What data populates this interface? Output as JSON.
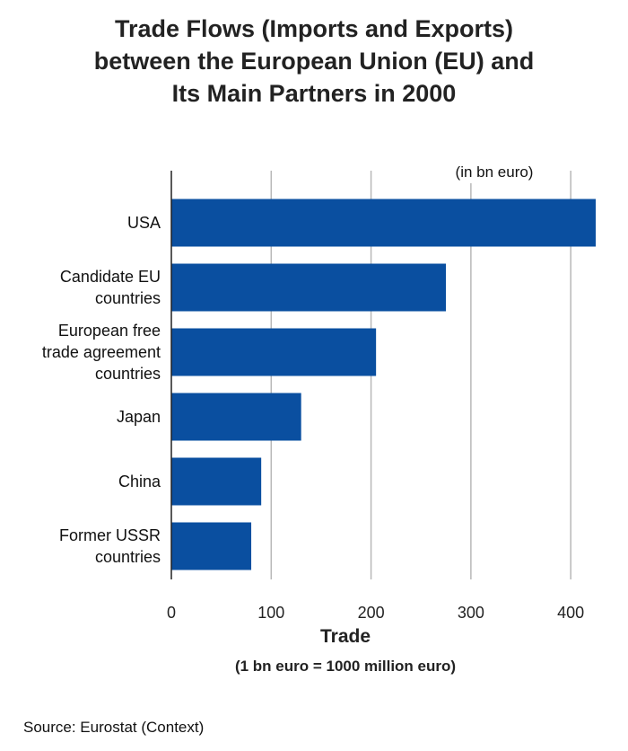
{
  "chart_data": {
    "type": "bar",
    "orientation": "horizontal",
    "title_lines": [
      "Trade Flows (Imports and Exports)",
      "between the European Union (EU) and",
      "Its Main Partners in 2000"
    ],
    "unit_note": "(in bn euro)",
    "categories": [
      [
        "USA"
      ],
      [
        "Candidate EU",
        "countries"
      ],
      [
        "European free",
        "trade agreement",
        "countries"
      ],
      [
        "Japan"
      ],
      [
        "China"
      ],
      [
        "Former USSR",
        "countries"
      ]
    ],
    "values": [
      425,
      275,
      205,
      130,
      90,
      80
    ],
    "xlabel": "Trade",
    "xlabel_sub": "(1 bn euro = 1000 million euro)",
    "xlim": [
      0,
      425
    ],
    "xticks": [
      0,
      100,
      200,
      300,
      400
    ],
    "grid": true,
    "bar_color": "#0a4fa0",
    "grid_color": "#b8b8b8"
  },
  "source": "Source: Eurostat (Context)"
}
